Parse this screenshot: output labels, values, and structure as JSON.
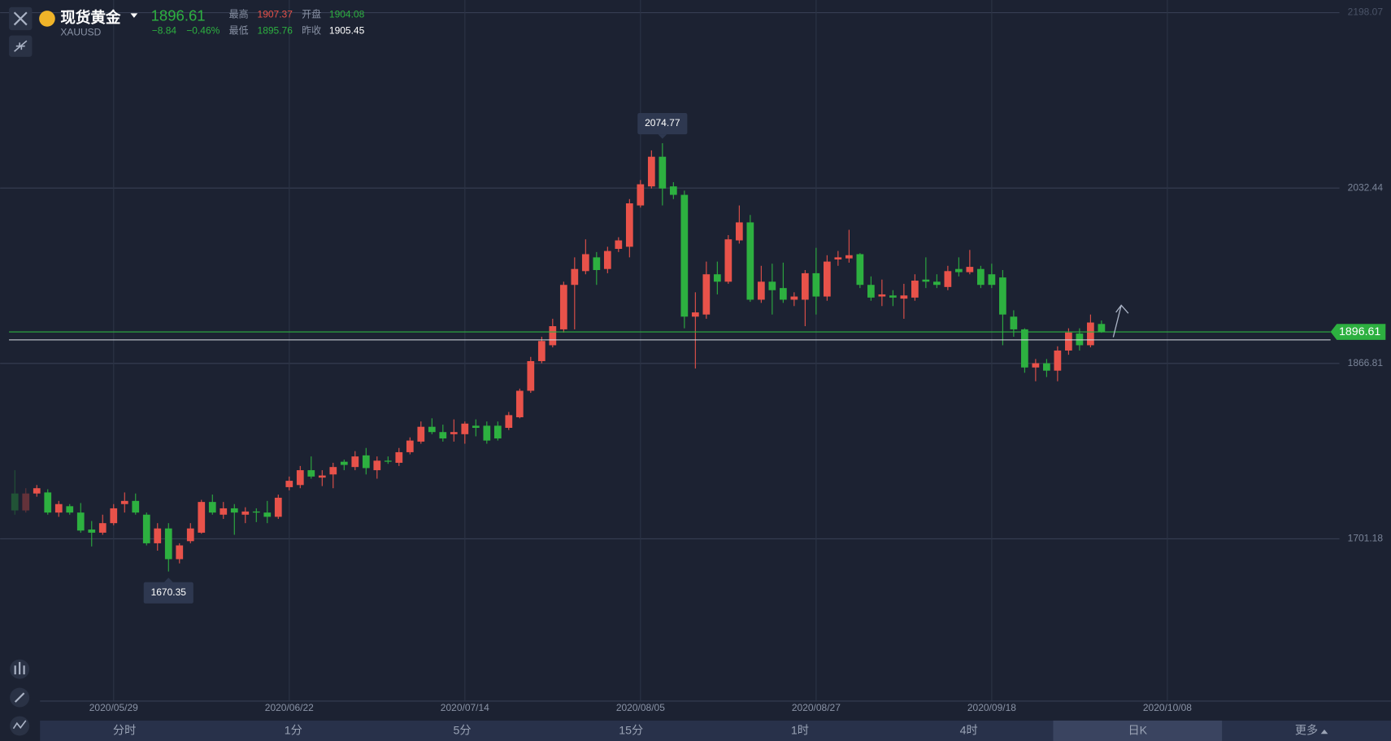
{
  "header": {
    "name": "现货黄金",
    "symbol": "XAUUSD",
    "change": "−8.84",
    "change_pct": "−0.46%",
    "high_label": "最高",
    "open_label": "开盘",
    "low_label": "最低",
    "prev_close_label": "昨收"
  },
  "tabs": [
    "分时",
    "1分",
    "5分",
    "15分",
    "1时",
    "4时",
    "日K",
    "更多"
  ],
  "selected_tab_index": 6,
  "chart_data": {
    "type": "candlestick",
    "ohlc": {
      "open": [
        1744,
        1728,
        1744,
        1745,
        1726,
        1732,
        1726,
        1710,
        1707,
        1716,
        1734,
        1737,
        1724,
        1697,
        1711,
        1682,
        1699,
        1707,
        1736,
        1724,
        1730,
        1724,
        1727,
        1726,
        1722,
        1750,
        1752,
        1766,
        1759,
        1762,
        1774,
        1769,
        1780,
        1766,
        1775,
        1773,
        1783,
        1793,
        1807,
        1802,
        1800,
        1800,
        1808,
        1808,
        1808,
        1806,
        1816,
        1841,
        1869,
        1884,
        1899,
        1941,
        1954,
        1967,
        1956,
        1975,
        1977,
        2016,
        2034,
        2062,
        2034,
        2026,
        1911,
        1913,
        1951,
        1944,
        1983,
        2000,
        1927,
        1944,
        1938,
        1927,
        1927,
        1952,
        1930,
        1965,
        1966,
        1970,
        1941,
        1930,
        1931,
        1928,
        1929,
        1946,
        1944,
        1939,
        1956,
        1953,
        1956,
        1951,
        1948,
        1911,
        1899,
        1863,
        1867,
        1860,
        1879,
        1895,
        1884,
        1904.08
      ],
      "high": [
        1766,
        1749,
        1752,
        1748,
        1737,
        1734,
        1735,
        1718,
        1724,
        1734,
        1745,
        1744,
        1726,
        1716,
        1716,
        1697,
        1716,
        1738,
        1743,
        1736,
        1734,
        1731,
        1730,
        1737,
        1743,
        1760,
        1770,
        1779,
        1766,
        1773,
        1776,
        1784,
        1787,
        1779,
        1779,
        1787,
        1797,
        1812,
        1815,
        1809,
        1814,
        1812,
        1814,
        1812,
        1812,
        1821,
        1843,
        1873,
        1892,
        1909,
        1944,
        1967,
        1984,
        1972,
        1977,
        1986,
        2022,
        2040,
        2068,
        2074.77,
        2038,
        2030,
        1934,
        1963,
        1963,
        1988,
        2016,
        2007,
        1959,
        1961,
        1962,
        1934,
        1955,
        1976,
        1969,
        1973,
        1993,
        1971,
        1949,
        1946,
        1936,
        1942,
        1951,
        1967,
        1951,
        1959,
        1967,
        1974,
        1959,
        1961,
        1955,
        1917,
        1900,
        1871,
        1871,
        1883,
        1900,
        1900,
        1913,
        1907.37
      ],
      "low": [
        1724,
        1726,
        1741,
        1724,
        1722,
        1724,
        1707,
        1694,
        1705,
        1714,
        1726,
        1724,
        1695,
        1690,
        1670.35,
        1678,
        1697,
        1706,
        1724,
        1720,
        1705,
        1716,
        1717,
        1716,
        1720,
        1747,
        1749,
        1758,
        1751,
        1749,
        1766,
        1766,
        1762,
        1758,
        1772,
        1770,
        1781,
        1791,
        1800,
        1793,
        1793,
        1791,
        1798,
        1791,
        1794,
        1804,
        1815,
        1839,
        1867,
        1882,
        1896,
        1899,
        1951,
        1941,
        1952,
        1972,
        1967,
        2014,
        2032,
        2016,
        2022,
        1900,
        1862,
        1909,
        1932,
        1942,
        1980,
        1925,
        1924,
        1913,
        1924,
        1921,
        1902,
        1913,
        1926,
        1959,
        1962,
        1938,
        1926,
        1921,
        1921,
        1909,
        1926,
        1938,
        1938,
        1936,
        1949,
        1951,
        1938,
        1938,
        1884,
        1892,
        1858,
        1850,
        1854,
        1850,
        1875,
        1879,
        1882,
        1895.76
      ],
      "close": [
        1728,
        1744,
        1749,
        1726,
        1734,
        1726,
        1709,
        1707,
        1716,
        1730,
        1737,
        1726,
        1697,
        1711,
        1682,
        1695,
        1711,
        1736,
        1726,
        1730,
        1726,
        1727,
        1726,
        1722,
        1740,
        1756,
        1766,
        1760,
        1761,
        1769,
        1771,
        1779,
        1768,
        1775,
        1774,
        1783,
        1794,
        1807,
        1802,
        1796,
        1802,
        1810,
        1806,
        1794,
        1796,
        1818,
        1841,
        1869,
        1888,
        1902,
        1941,
        1956,
        1970,
        1955,
        1973,
        1983,
        2018,
        2036,
        2062,
        2032,
        2026,
        1911,
        1915,
        1951,
        1944,
        1984,
        2000,
        1927,
        1944,
        1936,
        1927,
        1930,
        1952,
        1930,
        1963,
        1967,
        1969,
        1941,
        1929,
        1932,
        1929,
        1931,
        1945,
        1944,
        1941,
        1954,
        1953,
        1958,
        1941,
        1941,
        1913,
        1899,
        1863,
        1867,
        1860,
        1879,
        1896,
        1884,
        1905.45,
        1896.61
      ]
    },
    "x_labels": [
      "2020/05/29",
      "2020/06/22",
      "2020/07/14",
      "2020/08/05",
      "2020/08/27",
      "2020/09/18",
      "2020/10/08"
    ],
    "ylim": [
      1548,
      2210
    ],
    "yticks": [
      2198.07,
      2032.44,
      1866.81,
      1701.18
    ],
    "grid": true,
    "up_color": "#e8524a",
    "down_color": "#2db040"
  }
}
